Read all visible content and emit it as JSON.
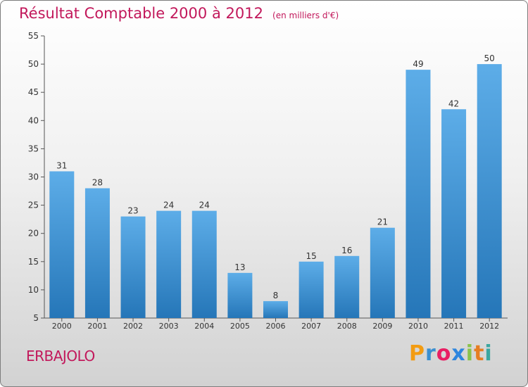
{
  "chart_data": {
    "type": "bar",
    "title": "Résultat Comptable 2000 à 2012",
    "subtitle": "(en milliers d'€)",
    "categories": [
      "2000",
      "2001",
      "2002",
      "2003",
      "2004",
      "2005",
      "2006",
      "2007",
      "2008",
      "2009",
      "2010",
      "2011",
      "2012"
    ],
    "values": [
      31,
      28,
      23,
      24,
      24,
      13,
      8,
      15,
      16,
      21,
      49,
      42,
      50
    ],
    "ylim": [
      5,
      55
    ],
    "yticks": [
      5,
      10,
      15,
      20,
      25,
      30,
      35,
      40,
      45,
      50,
      55
    ],
    "grid": false,
    "bar_color_top": "#5dade8",
    "bar_color_bottom": "#2576b8"
  },
  "location": "ERBAJOLO",
  "brand": {
    "letters": [
      "P",
      "r",
      "o",
      "x",
      "i",
      "t",
      "i"
    ],
    "colors": [
      "#f39c12",
      "#3a8fd0",
      "#e91e63",
      "#2e86de",
      "#8bc34a",
      "#e67e22",
      "#3aa6a0"
    ]
  }
}
